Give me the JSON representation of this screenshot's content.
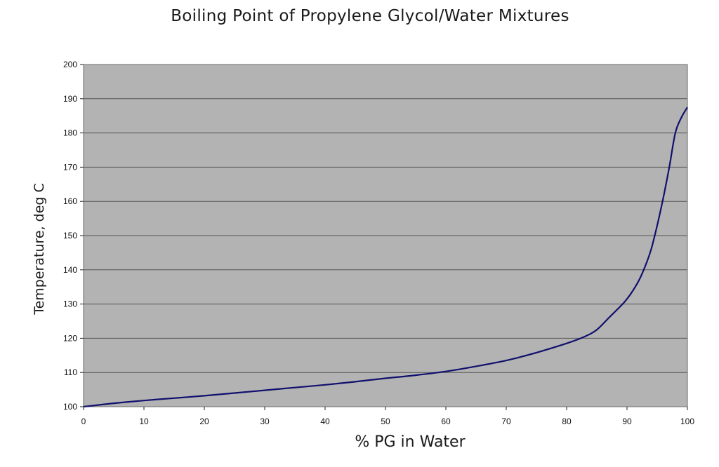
{
  "chart_data": {
    "type": "line",
    "title": "Boiling Point of Propylene Glycol/Water Mixtures",
    "xlabel": "% PG in Water",
    "ylabel": "Temperature, deg C",
    "xlim": [
      0,
      100
    ],
    "ylim": [
      100,
      200
    ],
    "x_ticks": [
      0,
      10,
      20,
      30,
      40,
      50,
      60,
      70,
      80,
      90,
      100
    ],
    "y_ticks": [
      100,
      110,
      120,
      130,
      140,
      150,
      160,
      170,
      180,
      190,
      200
    ],
    "grid": "horizontal",
    "legend": "none",
    "plot_background": "#b3b3b3",
    "line_color": "#10106e",
    "series": [
      {
        "x": [
          0,
          5,
          10,
          15,
          20,
          25,
          30,
          35,
          40,
          45,
          50,
          55,
          60,
          65,
          70,
          75,
          80,
          83,
          85,
          87,
          89,
          90,
          91,
          92,
          93,
          94,
          95,
          96,
          97,
          98,
          99,
          100
        ],
        "y": [
          100,
          101,
          101.8,
          102.5,
          103.2,
          104,
          104.8,
          105.6,
          106.4,
          107.3,
          108.3,
          109.2,
          110.3,
          111.8,
          113.5,
          115.8,
          118.5,
          120.5,
          122.5,
          126,
          129.5,
          131.5,
          134,
          137,
          141,
          146,
          153,
          161,
          170,
          180,
          184.5,
          187.5
        ]
      }
    ]
  }
}
